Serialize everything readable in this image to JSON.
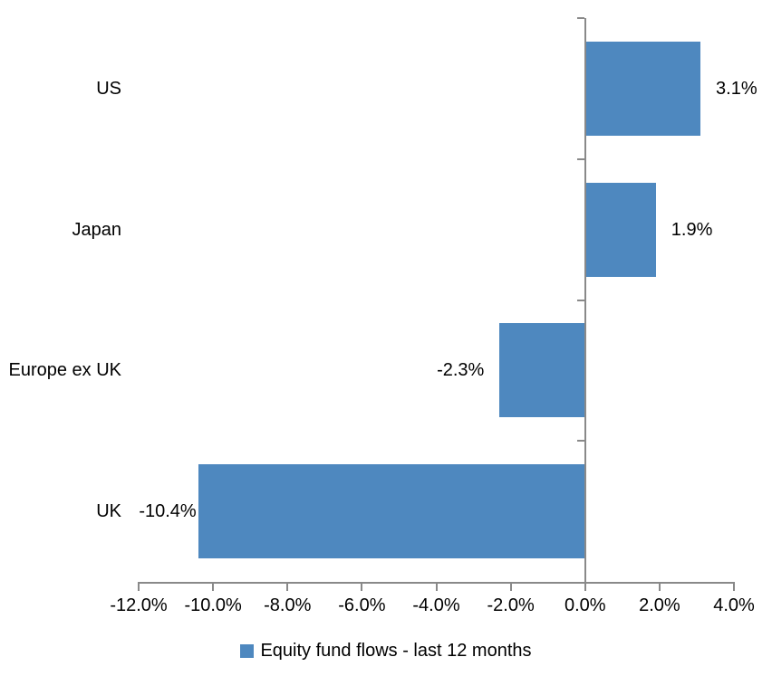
{
  "chart_data": {
    "type": "bar",
    "orientation": "horizontal",
    "title": "",
    "categories": [
      "US",
      "Japan",
      "Europe ex UK",
      "UK"
    ],
    "series": [
      {
        "name": "Equity fund flows - last 12 months",
        "values": [
          3.1,
          1.9,
          -2.3,
          -10.4
        ],
        "value_labels": [
          "3.1%",
          "1.9%",
          "-2.3%",
          "-10.4%"
        ],
        "color": "#4E88BF"
      }
    ],
    "xlim": [
      -12,
      4
    ],
    "x_ticks": [
      -12,
      -10,
      -8,
      -6,
      -4,
      -2,
      0,
      2,
      4
    ],
    "x_tick_labels": [
      "-12.0%",
      "-10.0%",
      "-8.0%",
      "-6.0%",
      "-4.0%",
      "-2.0%",
      "0.0%",
      "2.0%",
      "4.0%"
    ],
    "grid": false,
    "legend_position": "bottom",
    "axis_color": "#898989",
    "text_color": "#000000",
    "background_color": "#FFFFFF",
    "value_axis_crosses_at": 0
  }
}
